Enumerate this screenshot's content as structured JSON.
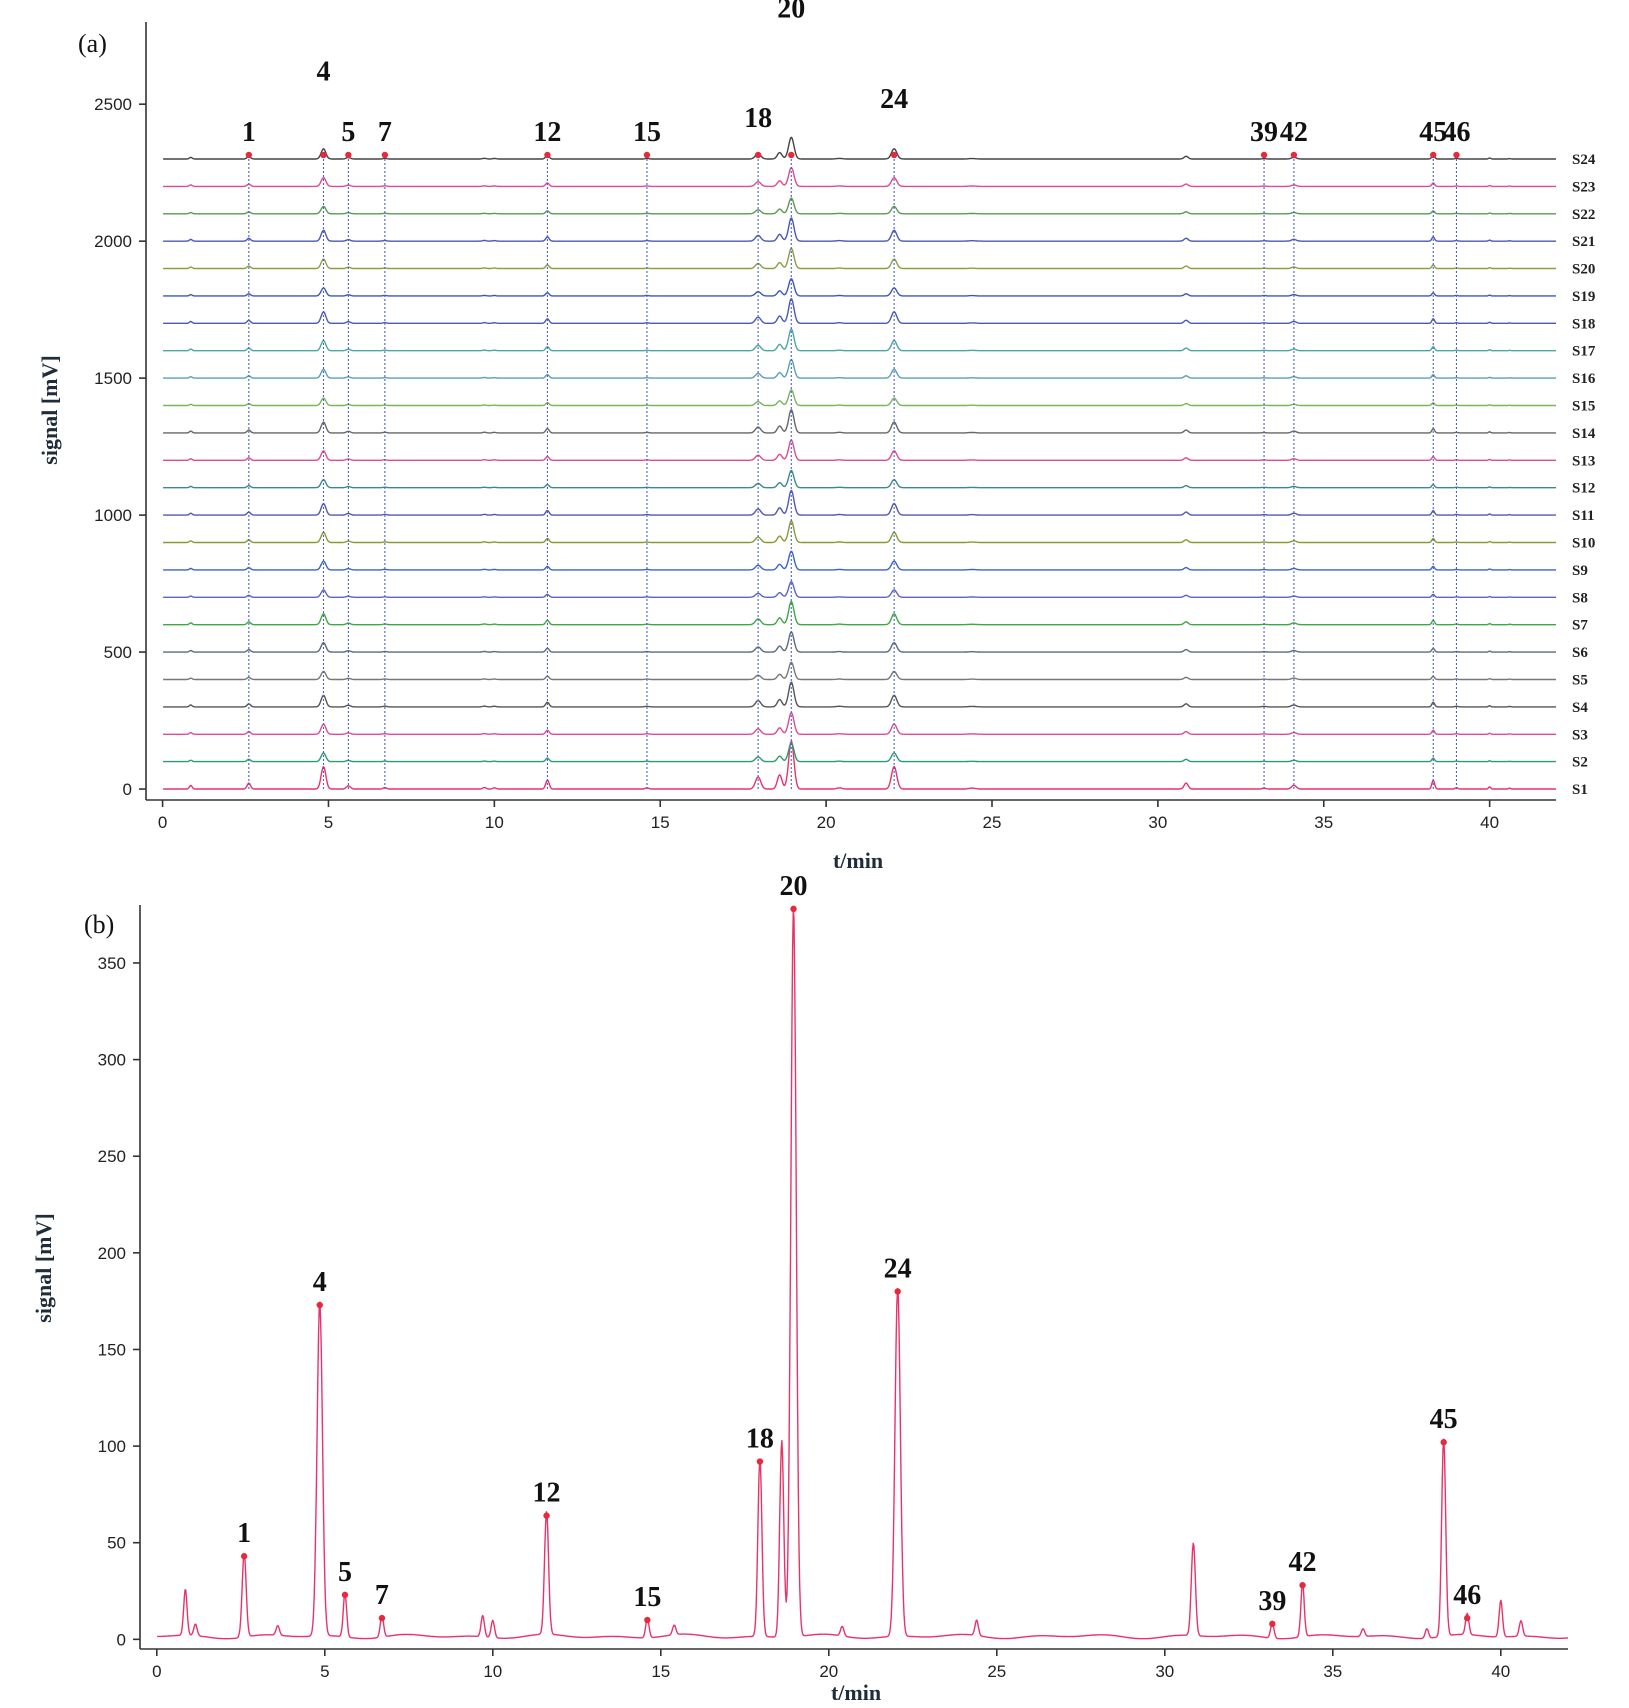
{
  "chart_data": [
    {
      "id": "a",
      "panel_label": "(a)",
      "type": "line",
      "title": "",
      "xlabel": "t/min",
      "ylabel": "signal [mV]",
      "xlim": [
        -0.5,
        42
      ],
      "ylim": [
        -40,
        2800
      ],
      "xticks": [
        0,
        5,
        10,
        15,
        20,
        25,
        30,
        35,
        40
      ],
      "yticks": [
        0,
        500,
        1000,
        1500,
        2000,
        2500
      ],
      "grid": false,
      "sample_offset_mV": 100,
      "samples": [
        "S1",
        "S2",
        "S3",
        "S4",
        "S5",
        "S6",
        "S7",
        "S8",
        "S9",
        "S10",
        "S11",
        "S12",
        "S13",
        "S14",
        "S15",
        "S16",
        "S17",
        "S18",
        "S19",
        "S20",
        "S21",
        "S22",
        "S23",
        "S24"
      ],
      "sample_colors": [
        "#e8336a",
        "#2a9d6e",
        "#e04a94",
        "#555555",
        "#777777",
        "#5a6b7d",
        "#3fa83f",
        "#5a64c8",
        "#3a64c8",
        "#8a9a30",
        "#5258b0",
        "#3a8a8a",
        "#e04a94",
        "#666666",
        "#7ab55c",
        "#5aa0b4",
        "#4aa8a0",
        "#4a5ab4",
        "#3a58b8",
        "#8aa040",
        "#4a58b4",
        "#5a9a50",
        "#e04a94",
        "#444444"
      ],
      "peaks": [
        {
          "label": "1",
          "rt": 2.6
        },
        {
          "label": "4",
          "rt": 4.85
        },
        {
          "label": "5",
          "rt": 5.6
        },
        {
          "label": "7",
          "rt": 6.7
        },
        {
          "label": "12",
          "rt": 11.6
        },
        {
          "label": "15",
          "rt": 14.6
        },
        {
          "label": "18",
          "rt": 17.95
        },
        {
          "label": "20",
          "rt": 18.95
        },
        {
          "label": "24",
          "rt": 22.05
        },
        {
          "label": "39",
          "rt": 33.2
        },
        {
          "label": "42",
          "rt": 34.1
        },
        {
          "label": "45",
          "rt": 38.3
        },
        {
          "label": "46",
          "rt": 39.0
        }
      ]
    },
    {
      "id": "b",
      "panel_label": "(b)",
      "type": "line",
      "title": "",
      "xlabel": "t/min",
      "ylabel": "signal [mV]",
      "xlim": [
        -0.5,
        42
      ],
      "ylim": [
        -5,
        380
      ],
      "xticks": [
        0,
        5,
        10,
        15,
        20,
        25,
        30,
        35,
        40
      ],
      "yticks": [
        0,
        50,
        100,
        150,
        200,
        250,
        300,
        350
      ],
      "grid": false,
      "series_color": "#e8336a",
      "peaks": [
        {
          "label": "1",
          "rt": 2.6,
          "height": 43
        },
        {
          "label": "4",
          "rt": 4.85,
          "height": 173
        },
        {
          "label": "5",
          "rt": 5.6,
          "height": 23
        },
        {
          "label": "7",
          "rt": 6.7,
          "height": 11
        },
        {
          "label": "12",
          "rt": 11.6,
          "height": 64
        },
        {
          "label": "15",
          "rt": 14.6,
          "height": 10
        },
        {
          "label": "18",
          "rt": 17.95,
          "height": 92
        },
        {
          "label": "20",
          "rt": 18.95,
          "height": 378
        },
        {
          "label": "24",
          "rt": 22.05,
          "height": 180
        },
        {
          "label": "39",
          "rt": 33.2,
          "height": 8
        },
        {
          "label": "42",
          "rt": 34.1,
          "height": 28
        },
        {
          "label": "45",
          "rt": 38.3,
          "height": 102
        },
        {
          "label": "46",
          "rt": 39.0,
          "height": 11
        }
      ],
      "unlabeled_peaks": [
        {
          "rt": 0.85,
          "height": 24
        },
        {
          "rt": 1.15,
          "height": 6
        },
        {
          "rt": 3.6,
          "height": 5
        },
        {
          "rt": 9.7,
          "height": 11
        },
        {
          "rt": 10.0,
          "height": 9
        },
        {
          "rt": 15.4,
          "height": 5
        },
        {
          "rt": 18.6,
          "height": 102
        },
        {
          "rt": 20.4,
          "height": 5
        },
        {
          "rt": 24.4,
          "height": 8
        },
        {
          "rt": 30.85,
          "height": 48
        },
        {
          "rt": 35.9,
          "height": 4
        },
        {
          "rt": 37.8,
          "height": 5
        },
        {
          "rt": 40.0,
          "height": 19
        },
        {
          "rt": 40.6,
          "height": 8
        }
      ]
    }
  ]
}
